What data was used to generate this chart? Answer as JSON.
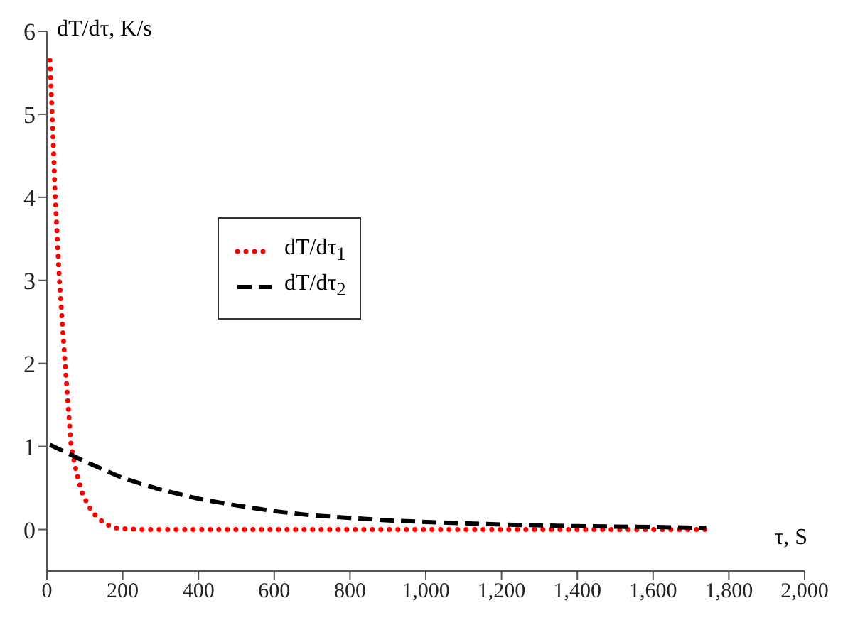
{
  "chart_data": {
    "type": "line",
    "xlabel": "τ, S",
    "ylabel": "dT/dτ, K/s",
    "xlim": [
      0,
      2000
    ],
    "xticks": [
      0,
      200,
      400,
      600,
      800,
      {
        "value": 1000,
        "label": "1,000"
      },
      {
        "value": 1200,
        "label": "1,200"
      },
      {
        "value": 1400,
        "label": "1,400"
      },
      {
        "value": 1600,
        "label": "1,600"
      },
      {
        "value": 1800,
        "label": "1,800"
      },
      {
        "value": 2000,
        "label": "2,000"
      }
    ],
    "ylim": [
      -0.5,
      6
    ],
    "yticks": [
      0,
      1,
      2,
      3,
      4,
      5,
      6
    ],
    "grid": false,
    "legend": "left",
    "marker": "none",
    "series": [
      {
        "name": "dT/dτ$_{1}$",
        "color": "#ff0000",
        "line_style": "dotted",
        "x": [
          8,
          14,
          22,
          33,
          48,
          64,
          80,
          94,
          110,
          128,
          150,
          177,
          200,
          250,
          300,
          400,
          600,
          800,
          1000,
          1200,
          1400,
          1600,
          1740
        ],
        "values": [
          5.65,
          5,
          4,
          3,
          2,
          1,
          0.65,
          0.43,
          0.28,
          0.17,
          0.08,
          0.02,
          0.01,
          0,
          0,
          0,
          0,
          0,
          0,
          0,
          0,
          0,
          0
        ]
      },
      {
        "name": "dT/dτ$_{2}$",
        "color": "#000000",
        "line_style": "dashed",
        "x": [
          8,
          100,
          200,
          300,
          400,
          500,
          600,
          700,
          800,
          900,
          1000,
          1200,
          1400,
          1600,
          1740
        ],
        "values": [
          1.02,
          0.82,
          0.62,
          0.48,
          0.37,
          0.29,
          0.22,
          0.17,
          0.14,
          0.11,
          0.09,
          0.06,
          0.04,
          0.03,
          0.02
        ]
      }
    ]
  }
}
